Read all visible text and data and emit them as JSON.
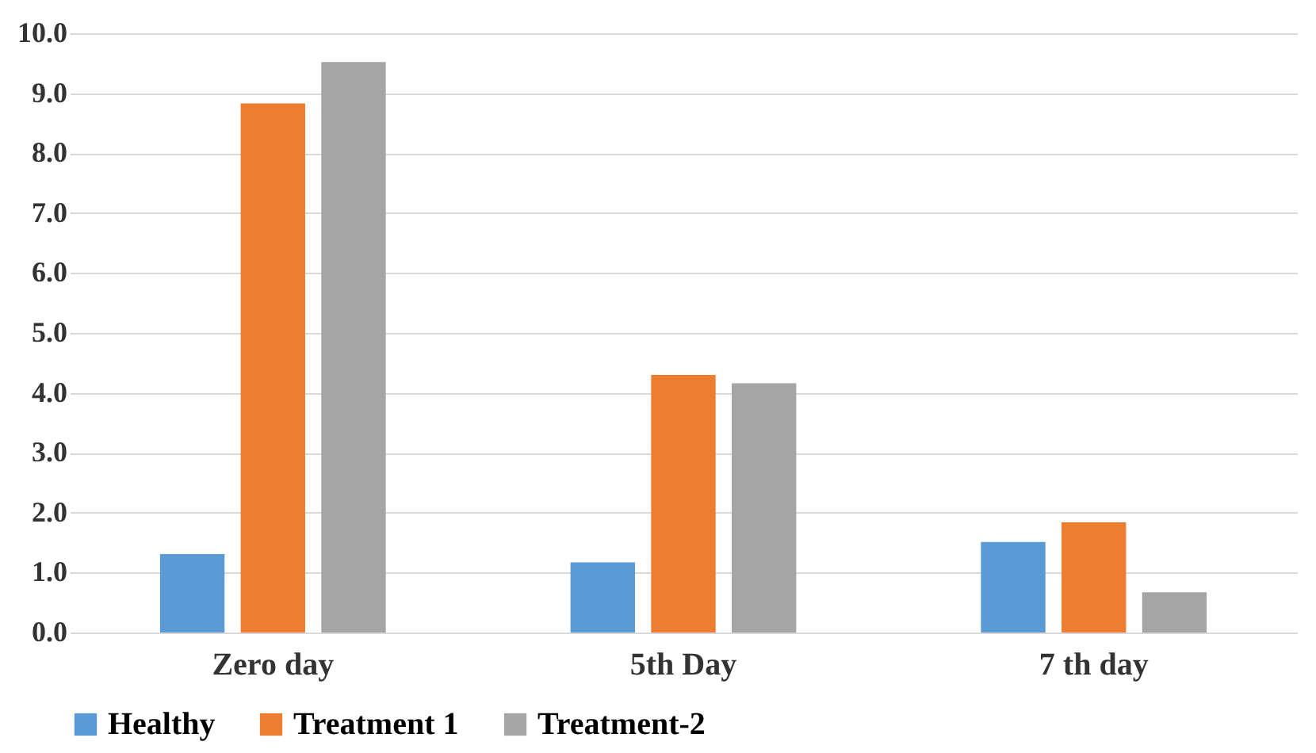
{
  "chart_data": {
    "type": "bar",
    "categories": [
      "Zero day",
      "5th Day",
      "7 th day"
    ],
    "series": [
      {
        "name": "Healthy",
        "color": "#5b9bd5",
        "values": [
          1.31,
          1.17,
          1.51
        ]
      },
      {
        "name": "Treatment 1",
        "color": "#ed7d31",
        "values": [
          8.83,
          4.3,
          1.84
        ]
      },
      {
        "name": "Treatment-2",
        "color": "#a5a5a5",
        "values": [
          9.52,
          4.16,
          0.67
        ]
      }
    ],
    "ylim": [
      0,
      10
    ],
    "yticks": [
      {
        "value": 0,
        "label": "0.0"
      },
      {
        "value": 1,
        "label": "1.0"
      },
      {
        "value": 2,
        "label": "2.0"
      },
      {
        "value": 3,
        "label": "3.0"
      },
      {
        "value": 4,
        "label": "4.0"
      },
      {
        "value": 5,
        "label": "5.0"
      },
      {
        "value": 6,
        "label": "6.0"
      },
      {
        "value": 7,
        "label": "7.0"
      },
      {
        "value": 8,
        "label": "8.0"
      },
      {
        "value": 9,
        "label": "9.0"
      },
      {
        "value": 10,
        "label": "10.0"
      }
    ],
    "grid": "y",
    "legend": "bottom"
  }
}
